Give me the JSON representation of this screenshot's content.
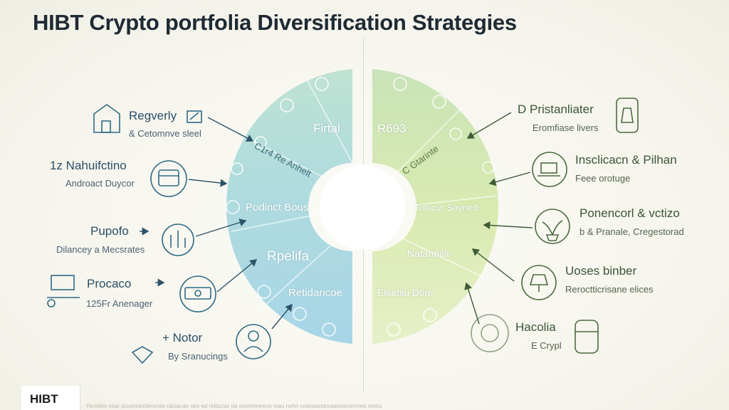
{
  "title": "HIBT Crypto portfolia Diversification Strategies",
  "left_items": [
    {
      "main": "Regverly",
      "sub": "& Cetomnve sleel",
      "icon": "house-icon"
    },
    {
      "main": "1z Nahuifctino",
      "sub": "Androact Duycor",
      "icon": "wallet-icon"
    },
    {
      "main": "Pupofo",
      "sub": "Dilancey a Mecsrates",
      "icon": "chart-icon"
    },
    {
      "main": "Procaco",
      "sub": "125Fr Anenager",
      "icon": "money-icon"
    },
    {
      "main": "+ Notor",
      "sub": "By Sranucings",
      "icon": "person-icon"
    }
  ],
  "right_items": [
    {
      "main": "D Pristanliater",
      "sub": "Eromfiase livers",
      "icon": "bottle-icon"
    },
    {
      "main": "Insclicacn & Pilhan",
      "sub": "Feee orotuge",
      "icon": "laptop-icon"
    },
    {
      "main": "Ponencorl & vctizo",
      "sub": "b & Pranale, Cregestorad",
      "icon": "plant-icon"
    },
    {
      "main": "Uoses binber",
      "sub": "Reroctticrisane elices",
      "icon": "lamp-icon"
    },
    {
      "main": "Hacolia",
      "sub": "E Crypl",
      "icon": "jar-icon"
    }
  ],
  "segments": {
    "top_left": "Firtal",
    "top_right": "R693",
    "left_small": "C1r4 Re Anhelt",
    "right_small": "C Gtarinte",
    "left_mid": "Podinct Bous",
    "right_mid": "Tolocur Sayned",
    "left_lower": "Rpelifa",
    "right_lower": "Natannila",
    "left_bottom": "Retidancoe",
    "right_bottom": "Elsetiiu Dtire"
  },
  "logo": "HIBT",
  "footer": "Yecetien esar prusnnesttenmes ratuacan oes ed rettaciar pa esonmneeve mau nehn coerpaestnraaeosmmrnes netsu"
}
